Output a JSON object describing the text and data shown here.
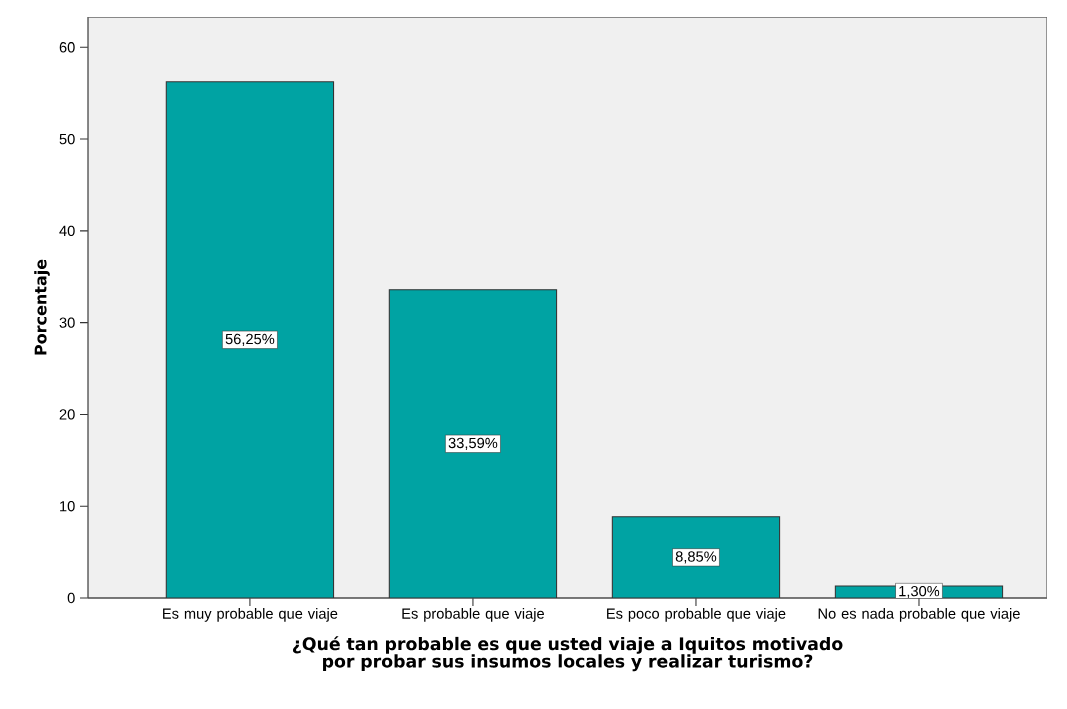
{
  "chart_data": {
    "type": "bar",
    "xlabel": "¿Qué tan probable es que usted viaje a Iquitos motivado por probar sus insumos locales  y realizar turismo?",
    "ylabel": "Porcentaje",
    "categories": [
      "Es muy probable que viaje",
      "Es probable que viaje",
      "Es poco probable que viaje",
      "No es nada probable que viaje"
    ],
    "values": [
      56.25,
      33.59,
      8.85,
      1.3
    ],
    "value_labels": [
      "56,25%",
      "33,59%",
      "8,85%",
      "1,30%"
    ],
    "color": "#00a3a3",
    "ylim": [
      0,
      63.3
    ],
    "yticks": [
      0,
      10,
      20,
      30,
      40,
      50,
      60
    ],
    "grid": false
  }
}
